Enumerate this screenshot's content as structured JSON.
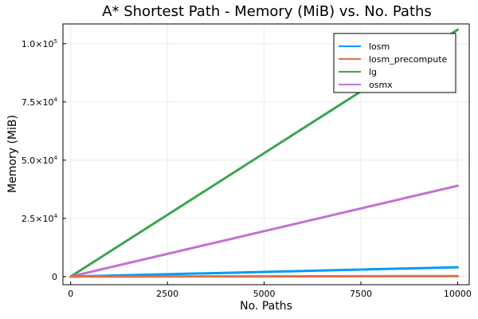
{
  "chart_data": {
    "type": "line",
    "title": "A* Shortest Path - Memory (MiB) vs. No. Paths",
    "xlabel": "No. Paths",
    "ylabel": "Memory (MiB)",
    "xlim": [
      -200,
      10300
    ],
    "ylim": [
      -3500,
      108500
    ],
    "x_ticks": [
      0,
      2500,
      5000,
      7500,
      10000
    ],
    "x_tick_labels": [
      "0",
      "2500",
      "5000",
      "7500",
      "10000"
    ],
    "y_ticks": [
      0,
      25000,
      50000,
      75000,
      100000
    ],
    "y_tick_labels": [
      {
        "mantissa": "0",
        "exp": ""
      },
      {
        "mantissa": "2.5×10",
        "exp": "4"
      },
      {
        "mantissa": "5.0×10",
        "exp": "4"
      },
      {
        "mantissa": "7.5×10",
        "exp": "4"
      },
      {
        "mantissa": "1.0×10",
        "exp": "5"
      }
    ],
    "grid": true,
    "legend_position": "top-right",
    "series": [
      {
        "name": "losm",
        "color": "#009af9",
        "x": [
          0,
          10000
        ],
        "y": [
          0,
          4000
        ]
      },
      {
        "name": "losm_precompute",
        "color": "#e26f46",
        "x": [
          0,
          10000
        ],
        "y": [
          0,
          200
        ]
      },
      {
        "name": "lg",
        "color": "#3da44d",
        "x": [
          0,
          10000
        ],
        "y": [
          0,
          106000
        ]
      },
      {
        "name": "osmx",
        "color": "#c271d2",
        "x": [
          0,
          10000
        ],
        "y": [
          0,
          39000
        ]
      }
    ]
  }
}
